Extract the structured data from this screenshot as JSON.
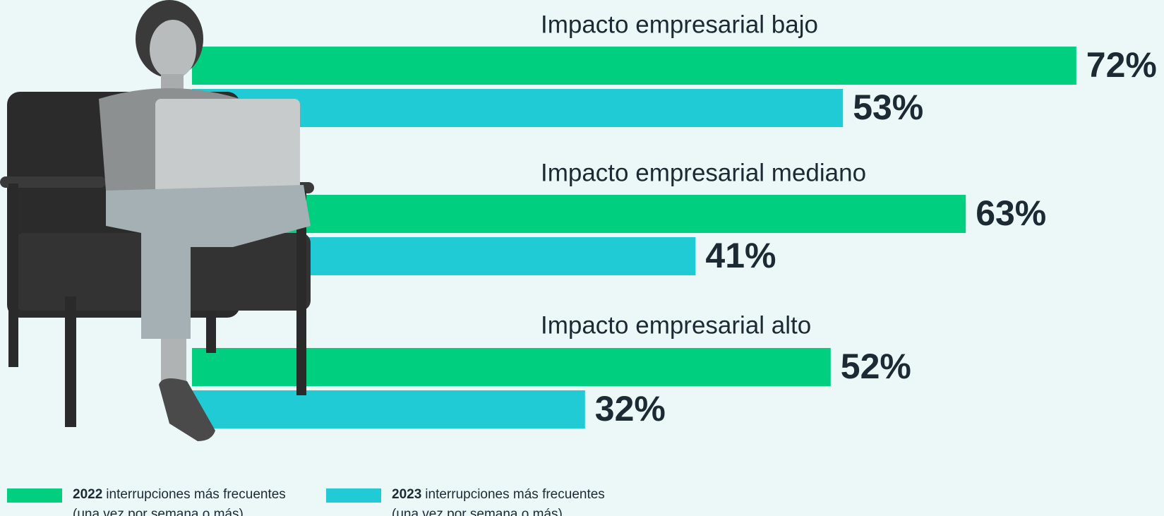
{
  "chart_data": {
    "type": "bar",
    "orientation": "horizontal",
    "categories": [
      "Impacto empresarial bajo",
      "Impacto empresarial mediano",
      "Impacto empresarial alto"
    ],
    "series": [
      {
        "name": "2022",
        "legend_text": "interrupciones más frecuentes",
        "legend_note": "(una vez por semana o más)",
        "color": "#00cf7f",
        "values": [
          72,
          63,
          52
        ],
        "value_labels": [
          "72%",
          "63%",
          "52%"
        ]
      },
      {
        "name": "2023",
        "legend_text": "interrupciones más frecuentes",
        "legend_note": "(una vez por semana o más)",
        "color": "#21cbd6",
        "values": [
          53,
          41,
          32
        ],
        "value_labels": [
          "53%",
          "41%",
          "32%"
        ]
      }
    ]
  }
}
